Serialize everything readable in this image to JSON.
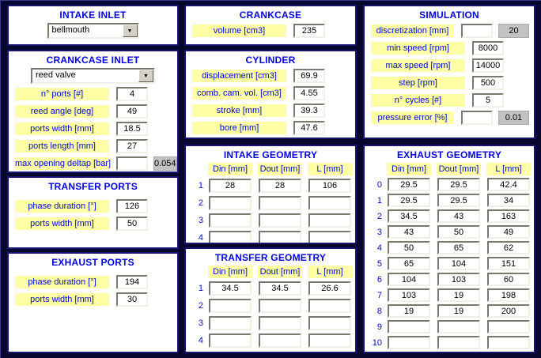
{
  "colors": {
    "background": "#06062e",
    "panel_border": "#15156b",
    "title_blue": "#0303db",
    "label_yellow": "#ffffa6",
    "label_text_blue": "#000ad0",
    "readout_gray": "#c2c2c2"
  },
  "icons": {
    "dropdown_arrow": "▼"
  },
  "panels": {
    "intake_inlet": {
      "title": "INTAKE INLET",
      "value": "bellmouth"
    },
    "crankcase_inlet": {
      "title": "CRANKCASE INLET",
      "value": "reed valve",
      "fields": [
        {
          "label": "n° ports [#]",
          "value": "4"
        },
        {
          "label": "reed angle [deg]",
          "value": "49"
        },
        {
          "label": "ports width [mm]",
          "value": "18.5"
        },
        {
          "label": "ports length [mm]",
          "value": "27"
        },
        {
          "label": "max opening deltap [bar]",
          "value": "",
          "readout": "0.054"
        }
      ]
    },
    "transfer_ports": {
      "title": "TRANSFER PORTS",
      "fields": [
        {
          "label": "phase duration [°]",
          "value": "126"
        },
        {
          "label": "ports width [mm]",
          "value": "50"
        }
      ]
    },
    "exhaust_ports": {
      "title": "EXHAUST PORTS",
      "fields": [
        {
          "label": "phase duration [°]",
          "value": "194"
        },
        {
          "label": "ports width [mm]",
          "value": "30"
        }
      ]
    },
    "crankcase": {
      "title": "CRANKCASE",
      "fields": [
        {
          "label": "volume [cm3]",
          "value": "235"
        }
      ]
    },
    "cylinder": {
      "title": "CYLINDER",
      "fields": [
        {
          "label": "displacement [cm3]",
          "value": "69.9"
        },
        {
          "label": "comb. cam. vol. [cm3]",
          "value": "4.55"
        },
        {
          "label": "stroke [mm]",
          "value": "39.3"
        },
        {
          "label": "bore [mm]",
          "value": "47.6"
        }
      ]
    },
    "intake_geometry": {
      "title": "INTAKE GEOMETRY",
      "columns": [
        "Din [mm]",
        "Dout [mm]",
        "L [mm]"
      ],
      "rows": [
        {
          "index": "1",
          "din": "28",
          "dout": "28",
          "l": "106"
        },
        {
          "index": "2",
          "din": "",
          "dout": "",
          "l": ""
        },
        {
          "index": "3",
          "din": "",
          "dout": "",
          "l": ""
        },
        {
          "index": "4",
          "din": "",
          "dout": "",
          "l": ""
        }
      ]
    },
    "transfer_geometry": {
      "title": "TRANSFER GEOMETRY",
      "columns": [
        "Din [mm]",
        "Dout [mm]",
        "L [mm]"
      ],
      "rows": [
        {
          "index": "1",
          "din": "34.5",
          "dout": "34.5",
          "l": "26.6"
        },
        {
          "index": "2",
          "din": "",
          "dout": "",
          "l": ""
        },
        {
          "index": "3",
          "din": "",
          "dout": "",
          "l": ""
        },
        {
          "index": "4",
          "din": "",
          "dout": "",
          "l": ""
        }
      ]
    },
    "simulation": {
      "title": "SIMULATION",
      "fields": [
        {
          "label": "discretization [mm]",
          "value": "",
          "readout": "20"
        },
        {
          "label": "min speed [rpm]",
          "value": "8000"
        },
        {
          "label": "max speed [rpm]",
          "value": "14000"
        },
        {
          "label": "step [rpm]",
          "value": "500"
        },
        {
          "label": "n° cycles [#]",
          "value": "5"
        },
        {
          "label": "pressure error [%]",
          "value": "",
          "readout": "0.01"
        }
      ]
    },
    "exhaust_geometry": {
      "title": "EXHAUST GEOMETRY",
      "columns": [
        "Din [mm]",
        "Dout [mm]",
        "L [mm]"
      ],
      "rows": [
        {
          "index": "0",
          "din": "29.5",
          "dout": "29.5",
          "l": "42.4"
        },
        {
          "index": "1",
          "din": "29.5",
          "dout": "29.5",
          "l": "34"
        },
        {
          "index": "2",
          "din": "34.5",
          "dout": "43",
          "l": "163"
        },
        {
          "index": "3",
          "din": "43",
          "dout": "50",
          "l": "49"
        },
        {
          "index": "4",
          "din": "50",
          "dout": "65",
          "l": "62"
        },
        {
          "index": "5",
          "din": "65",
          "dout": "104",
          "l": "151"
        },
        {
          "index": "6",
          "din": "104",
          "dout": "103",
          "l": "60"
        },
        {
          "index": "7",
          "din": "103",
          "dout": "19",
          "l": "198"
        },
        {
          "index": "8",
          "din": "19",
          "dout": "19",
          "l": "200"
        },
        {
          "index": "9",
          "din": "",
          "dout": "",
          "l": ""
        },
        {
          "index": "10",
          "din": "",
          "dout": "",
          "l": ""
        }
      ]
    }
  }
}
